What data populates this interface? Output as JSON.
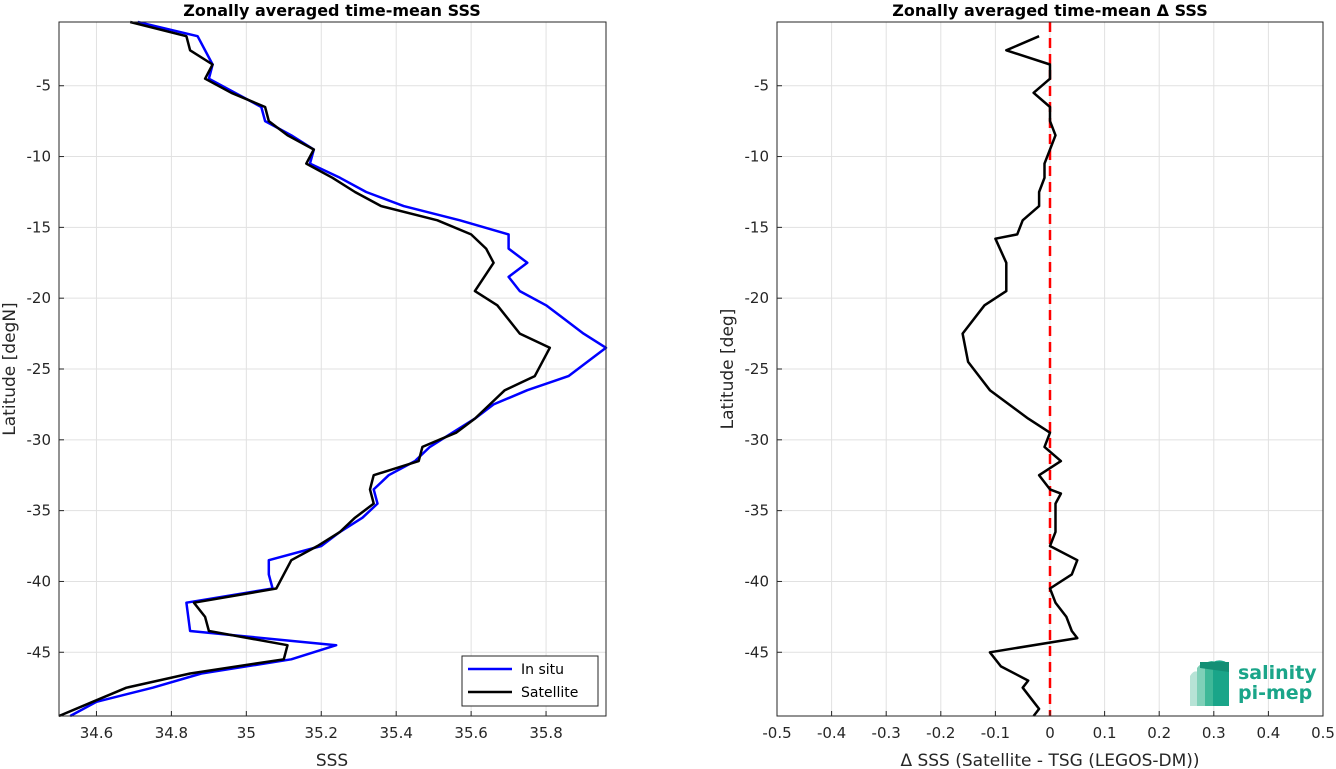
{
  "colors": {
    "in_situ": "#0000ff",
    "satellite": "#000000",
    "zero_line": "#ff0000",
    "grid": "#e1e1e1",
    "logo": "#1aa589"
  },
  "logo": {
    "line1": "salinity",
    "line2": "pi-mep"
  },
  "chart_data": [
    {
      "type": "line",
      "title": "Zonally averaged time-mean SSS",
      "xlabel": "SSS",
      "ylabel": "Latitude [degN]",
      "xlim": [
        34.5,
        35.96
      ],
      "ylim": [
        -49.5,
        -0.5
      ],
      "xticks": [
        34.6,
        34.8,
        35,
        35.2,
        35.4,
        35.6,
        35.8
      ],
      "xtick_labels": [
        "34.6",
        "34.8",
        "35",
        "35.2",
        "35.4",
        "35.6",
        "35.8"
      ],
      "yticks": [
        -5,
        -10,
        -15,
        -20,
        -25,
        -30,
        -35,
        -40,
        -45
      ],
      "ytick_labels": [
        "-5",
        "-10",
        "-15",
        "-20",
        "-25",
        "-30",
        "-35",
        "-40",
        "-45"
      ],
      "grid": true,
      "legend": "bottom-right",
      "series": [
        {
          "name": "In situ",
          "color": "#0000ff",
          "points": [
            [
              34.71,
              -0.5
            ],
            [
              34.87,
              -1.5
            ],
            [
              34.91,
              -3.5
            ],
            [
              34.9,
              -4.5
            ],
            [
              34.97,
              -5.5
            ],
            [
              35.04,
              -6.5
            ],
            [
              35.05,
              -7.5
            ],
            [
              35.12,
              -8.5
            ],
            [
              35.18,
              -9.5
            ],
            [
              35.17,
              -10.5
            ],
            [
              35.25,
              -11.5
            ],
            [
              35.32,
              -12.5
            ],
            [
              35.42,
              -13.5
            ],
            [
              35.57,
              -14.5
            ],
            [
              35.7,
              -15.5
            ],
            [
              35.7,
              -16.5
            ],
            [
              35.75,
              -17.5
            ],
            [
              35.7,
              -18.5
            ],
            [
              35.73,
              -19.5
            ],
            [
              35.8,
              -20.5
            ],
            [
              35.85,
              -21.5
            ],
            [
              35.9,
              -22.5
            ],
            [
              35.96,
              -23.5
            ],
            [
              35.91,
              -24.5
            ],
            [
              35.86,
              -25.5
            ],
            [
              35.75,
              -26.5
            ],
            [
              35.66,
              -27.5
            ],
            [
              35.61,
              -28.5
            ],
            [
              35.55,
              -29.5
            ],
            [
              35.49,
              -30.5
            ],
            [
              35.45,
              -31.5
            ],
            [
              35.38,
              -32.5
            ],
            [
              35.34,
              -33.5
            ],
            [
              35.35,
              -34.5
            ],
            [
              35.31,
              -35.5
            ],
            [
              35.25,
              -36.5
            ],
            [
              35.2,
              -37.5
            ],
            [
              35.06,
              -38.5
            ],
            [
              35.06,
              -39.5
            ],
            [
              35.07,
              -40.5
            ],
            [
              34.84,
              -41.5
            ],
            [
              34.85,
              -43.5
            ],
            [
              35.24,
              -44.5
            ],
            [
              35.12,
              -45.5
            ],
            [
              34.88,
              -46.5
            ],
            [
              34.75,
              -47.5
            ],
            [
              34.6,
              -48.5
            ],
            [
              34.53,
              -49.5
            ]
          ]
        },
        {
          "name": "Satellite",
          "color": "#000000",
          "points": [
            [
              34.69,
              -0.5
            ],
            [
              34.84,
              -1.5
            ],
            [
              34.85,
              -2.5
            ],
            [
              34.91,
              -3.5
            ],
            [
              34.89,
              -4.5
            ],
            [
              34.96,
              -5.5
            ],
            [
              35.05,
              -6.5
            ],
            [
              35.06,
              -7.5
            ],
            [
              35.11,
              -8.5
            ],
            [
              35.18,
              -9.5
            ],
            [
              35.16,
              -10.5
            ],
            [
              35.23,
              -11.5
            ],
            [
              35.29,
              -12.5
            ],
            [
              35.36,
              -13.5
            ],
            [
              35.51,
              -14.5
            ],
            [
              35.6,
              -15.5
            ],
            [
              35.64,
              -16.5
            ],
            [
              35.66,
              -17.5
            ],
            [
              35.61,
              -19.5
            ],
            [
              35.67,
              -20.5
            ],
            [
              35.73,
              -22.5
            ],
            [
              35.81,
              -23.5
            ],
            [
              35.79,
              -24.5
            ],
            [
              35.77,
              -25.5
            ],
            [
              35.69,
              -26.5
            ],
            [
              35.65,
              -27.5
            ],
            [
              35.61,
              -28.5
            ],
            [
              35.56,
              -29.5
            ],
            [
              35.47,
              -30.5
            ],
            [
              35.46,
              -31.5
            ],
            [
              35.34,
              -32.5
            ],
            [
              35.33,
              -33.5
            ],
            [
              35.34,
              -34.5
            ],
            [
              35.29,
              -35.5
            ],
            [
              35.25,
              -36.5
            ],
            [
              35.19,
              -37.5
            ],
            [
              35.12,
              -38.5
            ],
            [
              35.08,
              -40.5
            ],
            [
              34.86,
              -41.5
            ],
            [
              34.89,
              -42.5
            ],
            [
              34.9,
              -43.5
            ],
            [
              35.11,
              -44.5
            ],
            [
              35.1,
              -45.5
            ],
            [
              34.85,
              -46.5
            ],
            [
              34.68,
              -47.5
            ],
            [
              34.59,
              -48.5
            ],
            [
              34.5,
              -49.5
            ]
          ]
        }
      ]
    },
    {
      "type": "line",
      "title": "Zonally averaged time-mean Δ SSS",
      "xlabel": "Δ SSS (Satellite - TSG (LEGOS-DM))",
      "ylabel": "Latitude [deg]",
      "xlim": [
        -0.5,
        0.5
      ],
      "ylim": [
        -49.5,
        -0.5
      ],
      "xticks": [
        -0.5,
        -0.4,
        -0.3,
        -0.2,
        -0.1,
        0,
        0.1,
        0.2,
        0.3,
        0.4,
        0.5
      ],
      "xtick_labels": [
        "-0.5",
        "-0.4",
        "-0.3",
        "-0.2",
        "-0.1",
        "0",
        "0.1",
        "0.2",
        "0.3",
        "0.4",
        "0.5"
      ],
      "yticks": [
        -5,
        -10,
        -15,
        -20,
        -25,
        -30,
        -35,
        -40,
        -45
      ],
      "ytick_labels": [
        "-5",
        "-10",
        "-15",
        "-20",
        "-25",
        "-30",
        "-35",
        "-40",
        "-45"
      ],
      "grid": true,
      "reference_line": {
        "x": 0,
        "style": "dashed",
        "color": "#ff0000"
      },
      "series": [
        {
          "color": "#000000",
          "points": [
            [
              -0.02,
              -1.5
            ],
            [
              -0.08,
              -2.5
            ],
            [
              0.0,
              -3.5
            ],
            [
              0.0,
              -4.5
            ],
            [
              -0.03,
              -5.5
            ],
            [
              0.0,
              -6.5
            ],
            [
              0.0,
              -7.5
            ],
            [
              0.01,
              -8.5
            ],
            [
              0.0,
              -9.5
            ],
            [
              -0.01,
              -10.5
            ],
            [
              -0.01,
              -11.5
            ],
            [
              -0.02,
              -12.5
            ],
            [
              -0.02,
              -13.5
            ],
            [
              -0.05,
              -14.5
            ],
            [
              -0.06,
              -15.5
            ],
            [
              -0.1,
              -15.8
            ],
            [
              -0.08,
              -17.5
            ],
            [
              -0.08,
              -19.0
            ],
            [
              -0.08,
              -19.5
            ],
            [
              -0.12,
              -20.5
            ],
            [
              -0.16,
              -22.5
            ],
            [
              -0.15,
              -24.5
            ],
            [
              -0.11,
              -26.5
            ],
            [
              -0.04,
              -28.5
            ],
            [
              0.0,
              -29.5
            ],
            [
              -0.01,
              -30.5
            ],
            [
              0.02,
              -31.5
            ],
            [
              -0.02,
              -32.5
            ],
            [
              0.0,
              -33.5
            ],
            [
              0.02,
              -33.8
            ],
            [
              0.01,
              -34.5
            ],
            [
              0.01,
              -35.5
            ],
            [
              0.01,
              -36.5
            ],
            [
              0.0,
              -37.5
            ],
            [
              0.05,
              -38.5
            ],
            [
              0.04,
              -39.5
            ],
            [
              0.0,
              -40.5
            ],
            [
              0.01,
              -41.5
            ],
            [
              0.03,
              -42.5
            ],
            [
              0.04,
              -43.5
            ],
            [
              0.05,
              -44.0
            ],
            [
              -0.11,
              -45.0
            ],
            [
              -0.09,
              -46.0
            ],
            [
              -0.04,
              -47.0
            ],
            [
              -0.05,
              -47.5
            ],
            [
              -0.03,
              -48.5
            ],
            [
              -0.02,
              -49.0
            ],
            [
              -0.03,
              -49.5
            ]
          ]
        }
      ]
    }
  ]
}
